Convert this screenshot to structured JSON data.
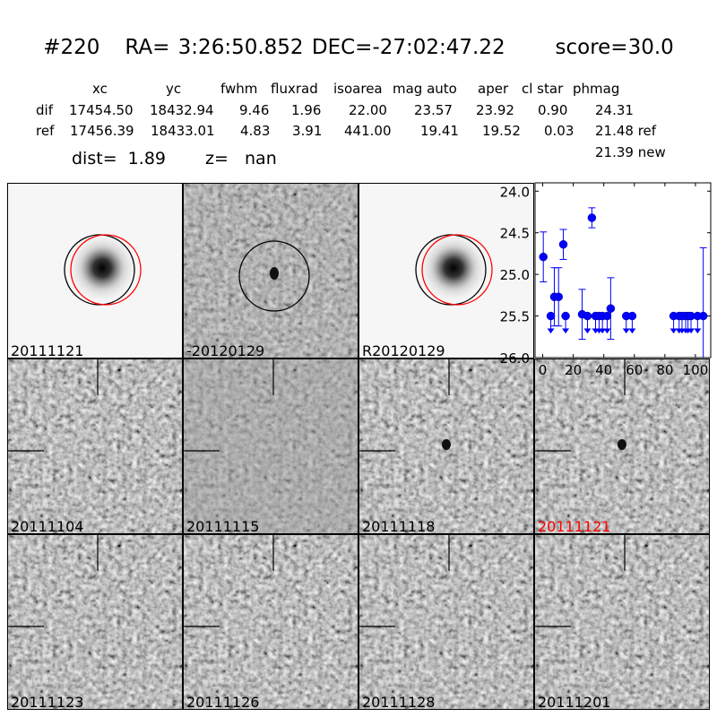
{
  "title": {
    "id": "#220",
    "ra": "RA= 3:26:50.852",
    "dec": "DEC=-27:02:47.22",
    "score": "score=30.0"
  },
  "table": {
    "headers": [
      "xc",
      "yc",
      "fwhm",
      "fluxrad",
      "isoarea",
      "mag auto",
      "aper",
      "cl star",
      "phmag"
    ],
    "rows": [
      {
        "label": "dif",
        "values": [
          "17454.50",
          "18432.94",
          "9.46",
          "1.96",
          "22.00",
          "23.57",
          "23.92",
          "0.90",
          "24.31"
        ]
      },
      {
        "label": "ref",
        "values": [
          "17456.39",
          "18433.01",
          "4.83",
          "3.91",
          "441.00",
          "19.41",
          "19.52",
          "0.03",
          "21.48 ref"
        ]
      }
    ],
    "extra": "21.39 new",
    "dist": "dist=  1.89",
    "z": "z=   nan"
  },
  "stamps": [
    {
      "label": "20111121",
      "type": "new"
    },
    {
      "label": "-20120129",
      "type": "diff"
    },
    {
      "label": "R20120129",
      "type": "ref"
    },
    {
      "label": "20111104",
      "type": "epoch"
    },
    {
      "label": "20111115",
      "type": "epoch"
    },
    {
      "label": "20111118",
      "type": "epoch"
    },
    {
      "label": "20111121",
      "type": "epoch",
      "color": "#ff0000"
    },
    {
      "label": "20111123",
      "type": "epoch"
    },
    {
      "label": "20111126",
      "type": "epoch"
    },
    {
      "label": "20111128",
      "type": "epoch"
    },
    {
      "label": "20111201",
      "type": "epoch"
    }
  ],
  "chart_data": {
    "type": "scatter",
    "color": "#0000ff",
    "xlim": [
      -5,
      110
    ],
    "ylim": [
      26.0,
      23.9
    ],
    "y_inverted": true,
    "xticks": [
      "0",
      "20",
      "40",
      "60",
      "80",
      "100"
    ],
    "yticks": [
      "24.0",
      "24.5",
      "25.0",
      "25.5",
      "26.0"
    ],
    "points": [
      {
        "x": 0.4,
        "y": 24.79,
        "err": 0.3
      },
      {
        "x": 5.3,
        "y": 25.5,
        "upper_limit": true
      },
      {
        "x": 7.6,
        "y": 25.27,
        "err": 0.35
      },
      {
        "x": 10.4,
        "y": 25.27,
        "err": 0.35
      },
      {
        "x": 13.5,
        "y": 24.64,
        "err": 0.18
      },
      {
        "x": 15.0,
        "y": 25.5,
        "upper_limit": true
      },
      {
        "x": 25.8,
        "y": 25.48,
        "err": 0.3
      },
      {
        "x": 29.3,
        "y": 25.5,
        "upper_limit": true
      },
      {
        "x": 32.2,
        "y": 24.32,
        "err": 0.12
      },
      {
        "x": 34.6,
        "y": 25.5,
        "upper_limit": true
      },
      {
        "x": 36.9,
        "y": 25.5,
        "upper_limit": true
      },
      {
        "x": 39.1,
        "y": 25.5,
        "upper_limit": true
      },
      {
        "x": 42.2,
        "y": 25.5,
        "upper_limit": true
      },
      {
        "x": 44.5,
        "y": 25.41,
        "err": 0.37
      },
      {
        "x": 54.7,
        "y": 25.5,
        "upper_limit": true
      },
      {
        "x": 58.6,
        "y": 25.5,
        "upper_limit": true
      },
      {
        "x": 85.7,
        "y": 25.5,
        "upper_limit": true
      },
      {
        "x": 89.3,
        "y": 25.5,
        "upper_limit": true
      },
      {
        "x": 91.2,
        "y": 25.5,
        "upper_limit": true
      },
      {
        "x": 93.6,
        "y": 25.5,
        "upper_limit": true
      },
      {
        "x": 95.1,
        "y": 25.5,
        "upper_limit": true
      },
      {
        "x": 97.1,
        "y": 25.5,
        "upper_limit": true
      },
      {
        "x": 101.4,
        "y": 25.5,
        "upper_limit": true
      },
      {
        "x": 105.1,
        "y": 25.5,
        "err": 0.82
      }
    ]
  }
}
